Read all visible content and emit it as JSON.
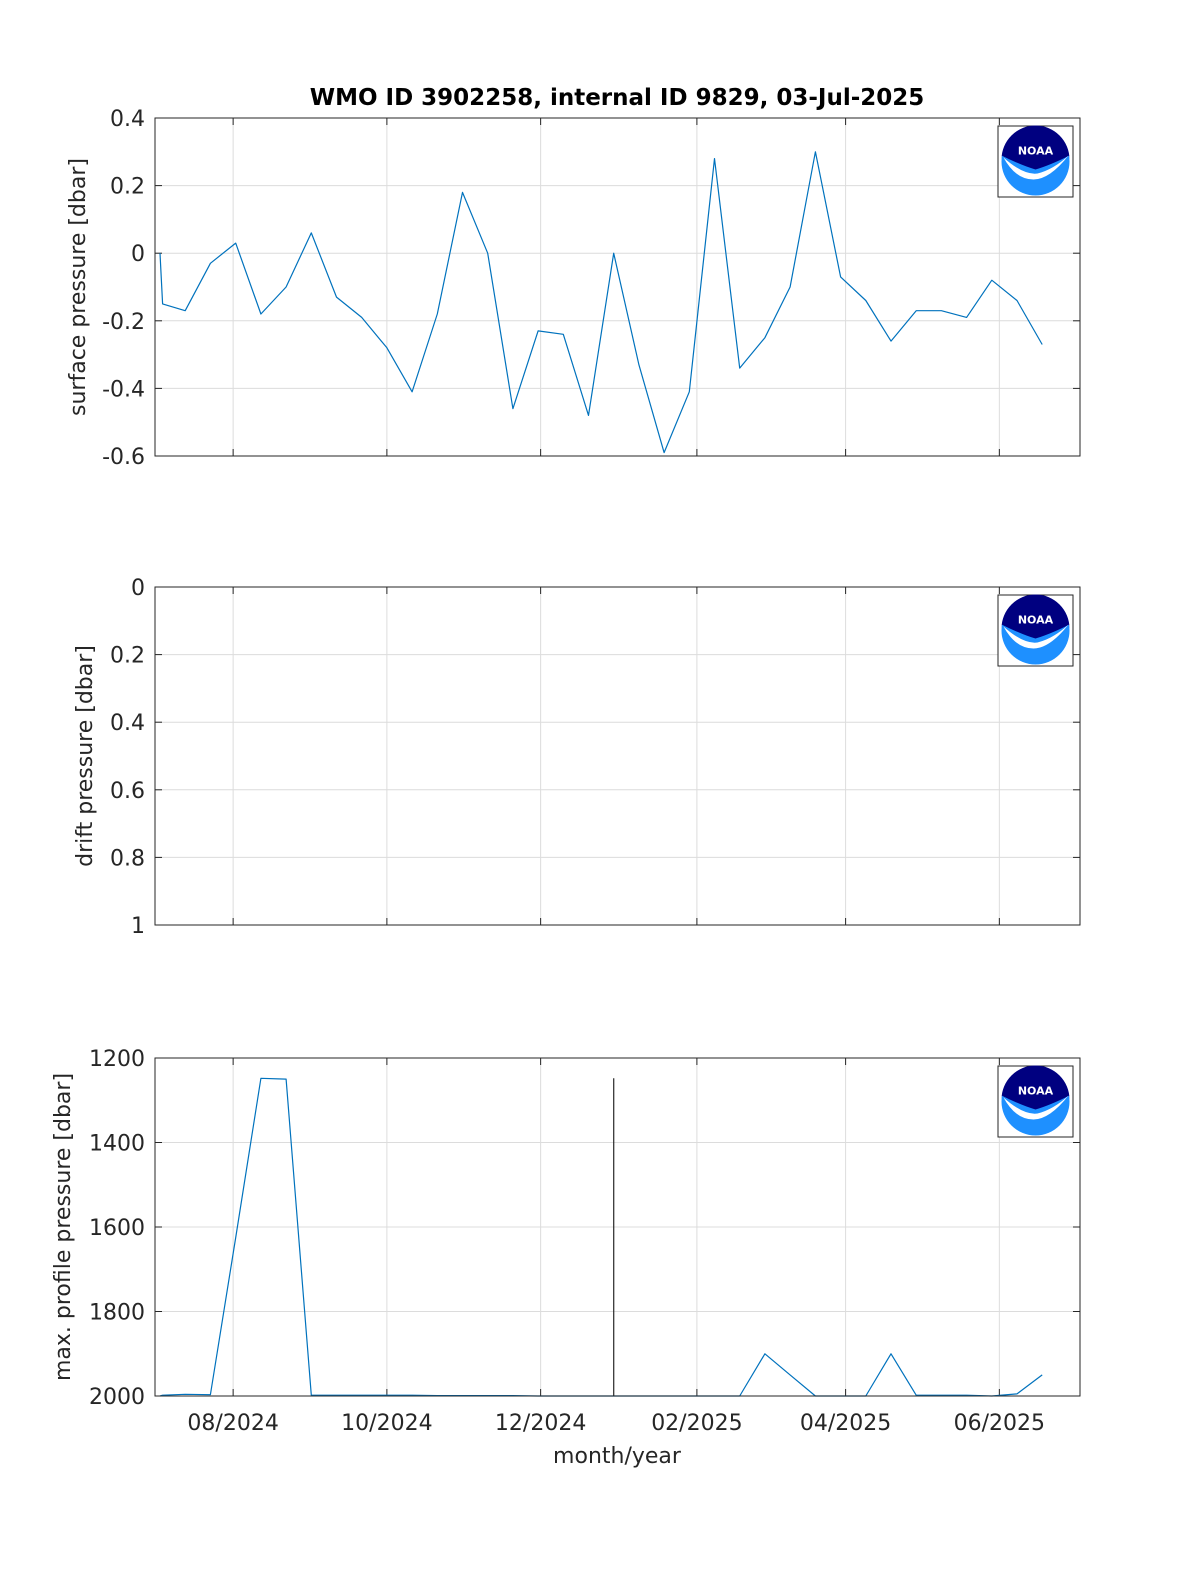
{
  "figure": {
    "title": "WMO ID 3902258, internal ID 9829, 03-Jul-2025",
    "xlabel": "month/year",
    "x_tick_labels": [
      "08/2024",
      "10/2024",
      "12/2024",
      "02/2025",
      "04/2025",
      "06/2025"
    ],
    "line_color": "#0072bd",
    "marker_color": "#262626"
  },
  "logo": {
    "text": "NOAA",
    "colors": {
      "navy": "#000080",
      "blue": "#1e90ff",
      "white": "#ffffff"
    }
  },
  "chart_data": [
    {
      "type": "line",
      "ylabel": "surface pressure [dbar]",
      "ylim": [
        -0.6,
        0.4
      ],
      "y_ticks": [
        0.4,
        0.2,
        0,
        -0.2,
        -0.4,
        -0.6
      ],
      "y_tick_labels": [
        "0.4",
        "0.2",
        "0",
        "-0.2",
        "-0.4",
        "-0.6"
      ],
      "y_reversed": false,
      "grid": true,
      "x": [
        "2024-07-03",
        "2024-07-04",
        "2024-07-13",
        "2024-07-23",
        "2024-08-02",
        "2024-08-12",
        "2024-08-22",
        "2024-09-01",
        "2024-09-11",
        "2024-09-21",
        "2024-10-01",
        "2024-10-11",
        "2024-10-21",
        "2024-10-31",
        "2024-11-10",
        "2024-11-20",
        "2024-11-30",
        "2024-12-10",
        "2024-12-20",
        "2024-12-30",
        "2025-01-09",
        "2025-01-19",
        "2025-01-29",
        "2025-02-08",
        "2025-02-18",
        "2025-02-28",
        "2025-03-10",
        "2025-03-20",
        "2025-03-30",
        "2025-04-09",
        "2025-04-19",
        "2025-04-29",
        "2025-05-09",
        "2025-05-19",
        "2025-05-29",
        "2025-06-08",
        "2025-06-18"
      ],
      "series": [
        {
          "values": [
            0,
            -0.15,
            -0.17,
            -0.03,
            0.03,
            -0.18,
            -0.1,
            0.06,
            -0.13,
            -0.19,
            -0.28,
            -0.41,
            -0.18,
            0.18,
            0,
            -0.46,
            -0.23,
            -0.24,
            -0.48,
            0,
            -0.33,
            -0.59,
            -0.41,
            0.28,
            -0.34,
            -0.25,
            -0.1,
            0.3,
            -0.07,
            -0.14,
            -0.26,
            -0.17,
            -0.17,
            -0.19,
            -0.08,
            -0.14,
            -0.27
          ]
        }
      ]
    },
    {
      "type": "line",
      "ylabel": "drift pressure [dbar]",
      "ylim": [
        0,
        1
      ],
      "y_ticks": [
        0,
        0.2,
        0.4,
        0.6,
        0.8,
        1
      ],
      "y_tick_labels": [
        "0",
        "0.2",
        "0.4",
        "0.6",
        "0.8",
        "1"
      ],
      "y_reversed": true,
      "grid": true,
      "x": [],
      "series": []
    },
    {
      "type": "line",
      "ylabel": "max. profile pressure [dbar]",
      "xlabel": "month/year",
      "ylim": [
        1200,
        2000
      ],
      "y_ticks": [
        1200,
        1400,
        1600,
        1800,
        2000
      ],
      "y_tick_labels": [
        "1200",
        "1400",
        "1600",
        "1800",
        "2000"
      ],
      "y_reversed": true,
      "grid": true,
      "x": [
        "2024-07-03",
        "2024-07-04",
        "2024-07-13",
        "2024-07-23",
        "2024-08-02",
        "2024-08-12",
        "2024-08-22",
        "2024-09-01",
        "2024-09-11",
        "2024-09-21",
        "2024-10-01",
        "2024-10-11",
        "2024-10-21",
        "2024-10-31",
        "2024-11-10",
        "2024-11-20",
        "2024-11-30",
        "2024-12-10",
        "2024-12-20",
        "2024-12-30",
        "2025-01-09",
        "2025-01-19",
        "2025-01-29",
        "2025-02-08",
        "2025-02-18",
        "2025-02-28",
        "2025-03-10",
        "2025-03-20",
        "2025-03-30",
        "2025-04-09",
        "2025-04-19",
        "2025-04-29",
        "2025-05-09",
        "2025-05-19",
        "2025-05-29",
        "2025-06-08",
        "2025-06-18"
      ],
      "series": [
        {
          "values": [
            2000,
            1998,
            1996,
            1997,
            1625,
            1248,
            1250,
            1998,
            1998,
            1998,
            1998,
            1998,
            1999,
            1999,
            1999,
            1999,
            2000,
            2000,
            2000,
            2000,
            2000,
            2000,
            2000,
            2000,
            2000,
            1900,
            1950,
            2000,
            2000,
            2000,
            1900,
            1998,
            1998,
            1998,
            2000,
            1995,
            1950
          ]
        }
      ],
      "vertical_marker": {
        "x": "2024-12-30",
        "y_from": 1248,
        "y_to": 2000
      }
    }
  ]
}
